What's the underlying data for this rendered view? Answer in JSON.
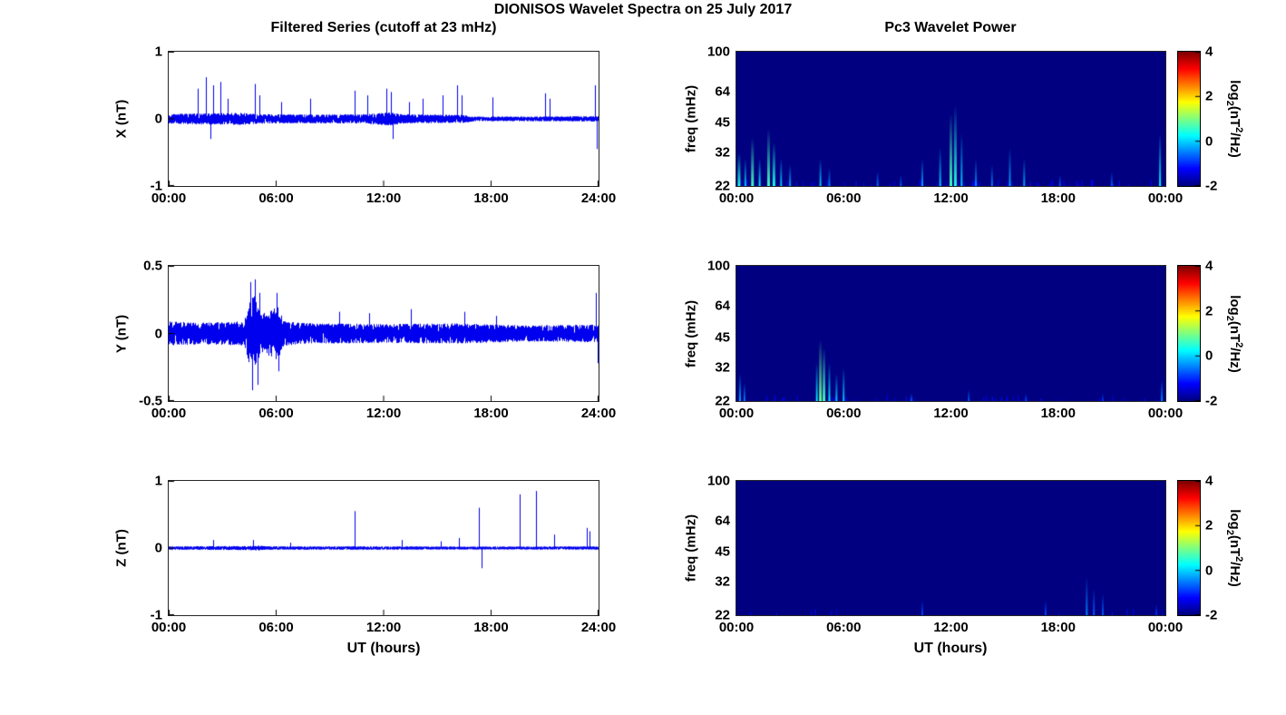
{
  "title": "DIONISOS Wavelet Spectra on 25 July 2017",
  "left_title": "Filtered Series (cutoff at 23 mHz)",
  "right_title": "Pc3 Wavelet Power",
  "xlabel": "UT (hours)",
  "colorbar": {
    "label_parts": {
      "prefix": "log",
      "sub": "2",
      "mid": "(nT",
      "sup": "2",
      "suffix": "/Hz)"
    },
    "ticks": [
      "4",
      "2",
      "0",
      "-2"
    ],
    "range": [
      -2,
      4
    ],
    "colormap": "jet"
  },
  "chart_data": [
    {
      "id": "ts-x",
      "type": "line",
      "ylabel": "X (nT)",
      "ylim": [
        -1,
        1
      ],
      "yticks": [
        "1",
        "0",
        "-1"
      ],
      "xlim": [
        0,
        24
      ],
      "xticks": [
        "00:00",
        "06:00",
        "12:00",
        "18:00",
        "24:00"
      ],
      "line_color": "#0000ee",
      "noise_envelope": [
        [
          0,
          0.07
        ],
        [
          1,
          0.08
        ],
        [
          4,
          0.09
        ],
        [
          5,
          0.07
        ],
        [
          8,
          0.065
        ],
        [
          11,
          0.07
        ],
        [
          12.3,
          0.1
        ],
        [
          13,
          0.07
        ],
        [
          16.5,
          0.06
        ],
        [
          17,
          0.035
        ],
        [
          21,
          0.035
        ],
        [
          24,
          0.04
        ]
      ],
      "spikes": [
        [
          1.6,
          0.45
        ],
        [
          2.1,
          0.62
        ],
        [
          2.35,
          -0.3
        ],
        [
          2.5,
          0.5
        ],
        [
          2.9,
          0.55
        ],
        [
          3.3,
          0.3
        ],
        [
          4.8,
          0.52
        ],
        [
          5.05,
          0.35
        ],
        [
          6.3,
          0.25
        ],
        [
          7.9,
          0.3
        ],
        [
          10.4,
          0.42
        ],
        [
          11.1,
          0.35
        ],
        [
          12.15,
          0.45
        ],
        [
          12.4,
          0.4
        ],
        [
          12.5,
          -0.3
        ],
        [
          13.4,
          0.25
        ],
        [
          14.2,
          0.3
        ],
        [
          15.3,
          0.35
        ],
        [
          16.1,
          0.5
        ],
        [
          16.35,
          0.35
        ],
        [
          18.1,
          0.32
        ],
        [
          21.0,
          0.38
        ],
        [
          21.25,
          0.3
        ],
        [
          23.8,
          0.5
        ],
        [
          23.9,
          -0.45
        ]
      ]
    },
    {
      "id": "ts-y",
      "type": "line",
      "ylabel": "Y (nT)",
      "ylim": [
        -0.5,
        0.5
      ],
      "yticks": [
        "0.5",
        "0",
        "-0.5"
      ],
      "xlim": [
        0,
        24
      ],
      "xticks": [
        "00:00",
        "06:00",
        "12:00",
        "18:00",
        "24:00"
      ],
      "line_color": "#0000ee",
      "noise_envelope": [
        [
          0,
          0.09
        ],
        [
          2,
          0.08
        ],
        [
          4.2,
          0.09
        ],
        [
          4.45,
          0.22
        ],
        [
          4.75,
          0.3
        ],
        [
          5.1,
          0.14
        ],
        [
          5.8,
          0.18
        ],
        [
          6.1,
          0.2
        ],
        [
          6.4,
          0.09
        ],
        [
          8,
          0.075
        ],
        [
          12,
          0.07
        ],
        [
          16,
          0.075
        ],
        [
          20,
          0.06
        ],
        [
          24,
          0.065
        ]
      ],
      "spikes": [
        [
          4.55,
          0.38
        ],
        [
          4.65,
          -0.42
        ],
        [
          4.8,
          0.4
        ],
        [
          4.95,
          -0.38
        ],
        [
          5.05,
          0.3
        ],
        [
          6.0,
          0.3
        ],
        [
          6.15,
          -0.28
        ],
        [
          9.5,
          0.16
        ],
        [
          11.2,
          0.15
        ],
        [
          13.5,
          0.18
        ],
        [
          16.5,
          0.16
        ],
        [
          18.3,
          0.13
        ],
        [
          23.85,
          0.3
        ],
        [
          23.95,
          -0.22
        ]
      ]
    },
    {
      "id": "ts-z",
      "type": "line",
      "ylabel": "Z (nT)",
      "ylim": [
        -1,
        1
      ],
      "yticks": [
        "1",
        "0",
        "-1"
      ],
      "xlim": [
        0,
        24
      ],
      "xticks": [
        "00:00",
        "06:00",
        "12:00",
        "18:00",
        "24:00"
      ],
      "line_color": "#0000ee",
      "noise_envelope": [
        [
          0,
          0.025
        ],
        [
          4.4,
          0.03
        ],
        [
          5,
          0.035
        ],
        [
          5.5,
          0.025
        ],
        [
          12,
          0.025
        ],
        [
          18,
          0.022
        ],
        [
          24,
          0.025
        ]
      ],
      "spikes": [
        [
          2.5,
          0.12
        ],
        [
          4.7,
          0.12
        ],
        [
          6.8,
          0.08
        ],
        [
          10.4,
          0.55
        ],
        [
          13.0,
          0.12
        ],
        [
          15.2,
          0.1
        ],
        [
          16.2,
          0.15
        ],
        [
          17.3,
          0.6
        ],
        [
          17.45,
          -0.3
        ],
        [
          19.6,
          0.8
        ],
        [
          20.5,
          0.85
        ],
        [
          21.5,
          0.2
        ],
        [
          23.35,
          0.3
        ],
        [
          23.5,
          0.25
        ]
      ]
    },
    {
      "id": "spec-x",
      "type": "heatmap",
      "ylabel": "freq (mHz)",
      "flim": [
        22,
        100
      ],
      "yscale": "log",
      "yticks": [
        100,
        64,
        45,
        32,
        22
      ],
      "xlim": [
        0,
        24
      ],
      "xticks": [
        "00:00",
        "06:00",
        "12:00",
        "18:00",
        "00:00"
      ],
      "clim": [
        -2,
        4
      ],
      "background_value": -2,
      "speckle": 0.5,
      "features": [
        {
          "t": 0.15,
          "fmax": 32,
          "i": 0.8
        },
        {
          "t": 0.5,
          "fmax": 30,
          "i": 0.6
        },
        {
          "t": 0.9,
          "fmax": 38,
          "i": 0.9
        },
        {
          "t": 1.3,
          "fmax": 30,
          "i": 0.7
        },
        {
          "t": 1.8,
          "fmax": 42,
          "i": 0.9
        },
        {
          "t": 2.1,
          "fmax": 36,
          "i": 0.8
        },
        {
          "t": 2.5,
          "fmax": 30,
          "i": 0.6
        },
        {
          "t": 3.0,
          "fmax": 28,
          "i": 0.5
        },
        {
          "t": 4.7,
          "fmax": 30,
          "i": 0.6
        },
        {
          "t": 5.2,
          "fmax": 27,
          "i": 0.4
        },
        {
          "t": 7.9,
          "fmax": 26,
          "i": 0.35
        },
        {
          "t": 9.2,
          "fmax": 25,
          "i": 0.3
        },
        {
          "t": 10.4,
          "fmax": 30,
          "i": 0.5
        },
        {
          "t": 11.4,
          "fmax": 34,
          "i": 0.6
        },
        {
          "t": 12.0,
          "fmax": 50,
          "i": 0.9
        },
        {
          "t": 12.25,
          "fmax": 55,
          "i": 0.8
        },
        {
          "t": 12.6,
          "fmax": 40,
          "i": 0.6
        },
        {
          "t": 13.4,
          "fmax": 30,
          "i": 0.45
        },
        {
          "t": 14.3,
          "fmax": 28,
          "i": 0.4
        },
        {
          "t": 15.3,
          "fmax": 34,
          "i": 0.5
        },
        {
          "t": 16.1,
          "fmax": 30,
          "i": 0.5
        },
        {
          "t": 18.1,
          "fmax": 25,
          "i": 0.3
        },
        {
          "t": 21.0,
          "fmax": 26,
          "i": 0.3
        },
        {
          "t": 23.7,
          "fmax": 40,
          "i": 0.7
        }
      ]
    },
    {
      "id": "spec-y",
      "type": "heatmap",
      "ylabel": "freq (mHz)",
      "flim": [
        22,
        100
      ],
      "yscale": "log",
      "yticks": [
        100,
        64,
        45,
        32,
        22
      ],
      "xlim": [
        0,
        24
      ],
      "xticks": [
        "00:00",
        "06:00",
        "12:00",
        "18:00",
        "00:00"
      ],
      "clim": [
        -2,
        4
      ],
      "background_value": -2,
      "speckle": 0.3,
      "features": [
        {
          "t": 0.2,
          "fmax": 30,
          "i": 0.5
        },
        {
          "t": 0.45,
          "fmax": 27,
          "i": 0.4
        },
        {
          "t": 4.5,
          "fmax": 34,
          "i": 0.7
        },
        {
          "t": 4.7,
          "fmax": 44,
          "i": 1.0
        },
        {
          "t": 4.9,
          "fmax": 40,
          "i": 0.9
        },
        {
          "t": 5.2,
          "fmax": 34,
          "i": 0.7
        },
        {
          "t": 5.6,
          "fmax": 30,
          "i": 0.6
        },
        {
          "t": 6.0,
          "fmax": 32,
          "i": 0.6
        },
        {
          "t": 9.8,
          "fmax": 24,
          "i": 0.3
        },
        {
          "t": 13.0,
          "fmax": 25,
          "i": 0.3
        },
        {
          "t": 16.2,
          "fmax": 24,
          "i": 0.25
        },
        {
          "t": 20.5,
          "fmax": 24,
          "i": 0.2
        },
        {
          "t": 23.8,
          "fmax": 28,
          "i": 0.4
        }
      ]
    },
    {
      "id": "spec-z",
      "type": "heatmap",
      "ylabel": "freq (mHz)",
      "flim": [
        22,
        100
      ],
      "yscale": "log",
      "yticks": [
        100,
        64,
        45,
        32,
        22
      ],
      "xlim": [
        0,
        24
      ],
      "xticks": [
        "00:00",
        "06:00",
        "12:00",
        "18:00",
        "00:00"
      ],
      "clim": [
        -2,
        4
      ],
      "background_value": -2,
      "speckle": 0.1,
      "features": [
        {
          "t": 10.4,
          "fmax": 26,
          "i": 0.25
        },
        {
          "t": 17.3,
          "fmax": 26,
          "i": 0.25
        },
        {
          "t": 19.6,
          "fmax": 34,
          "i": 0.4
        },
        {
          "t": 20.0,
          "fmax": 30,
          "i": 0.3
        },
        {
          "t": 20.5,
          "fmax": 28,
          "i": 0.3
        },
        {
          "t": 23.5,
          "fmax": 25,
          "i": 0.2
        }
      ]
    }
  ]
}
